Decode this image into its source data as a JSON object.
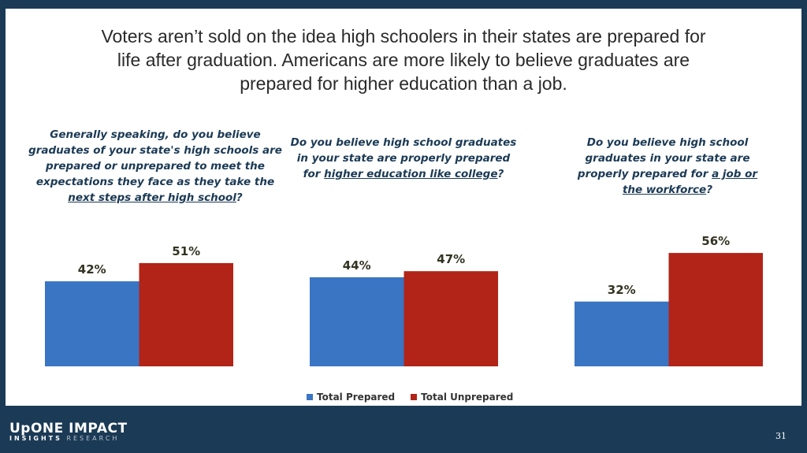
{
  "title": "Voters aren’t sold on the idea high schoolers in their states are prepared for life after graduation. Americans are more likely to believe graduates are prepared for higher education than a job.",
  "questions": [
    {
      "pre": "Generally speaking, do you believe graduates of your state's high schools are prepared or unprepared to meet the expectations they face as they take the ",
      "u": "next steps after high school",
      "post": "?"
    },
    {
      "pre": "Do you believe high school graduates in your state are properly prepared for ",
      "u": "higher education like college",
      "post": "?"
    },
    {
      "pre": "Do you believe high school graduates in your state are properly prepared for ",
      "u": "a job or the workforce",
      "post": "?"
    }
  ],
  "colors": {
    "prepared": "#3a75c4",
    "unprepared": "#b22418",
    "frame": "#1b3a55"
  },
  "chart_data": {
    "type": "bar",
    "categories": [
      "Next steps after high school",
      "Higher education like college",
      "A job or the workforce"
    ],
    "series": [
      {
        "name": "Total Prepared",
        "values": [
          42,
          44,
          32
        ]
      },
      {
        "name": "Total Unprepared",
        "values": [
          51,
          47,
          56
        ]
      }
    ],
    "value_format": "%",
    "legend": "bottom",
    "grid": false
  },
  "legend": {
    "prepared": "Total Prepared",
    "unprepared": "Total Unprepared"
  },
  "logo": {
    "line1": "UpONE IMPACT",
    "line2a": "INSIGHTS",
    "line2b": "RESEARCH"
  },
  "page_number": "31"
}
